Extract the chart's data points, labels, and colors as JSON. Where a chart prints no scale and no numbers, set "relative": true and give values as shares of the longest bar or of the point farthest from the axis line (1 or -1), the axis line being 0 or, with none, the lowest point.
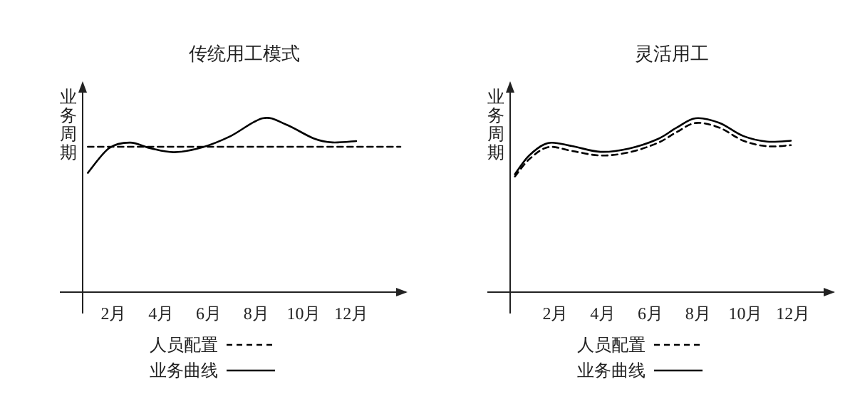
{
  "chart_data": [
    {
      "type": "line",
      "title": "传统用工模式",
      "ylabel": "业务周期",
      "relative": true,
      "tick_labels": "x",
      "legend": "bottom",
      "xlim": [
        0.7,
        14.3
      ],
      "xticks": [
        {
          "value": 2,
          "label": "2月"
        },
        {
          "value": 4,
          "label": "4月"
        },
        {
          "value": 6,
          "label": "6月"
        },
        {
          "value": 8,
          "label": "8月"
        },
        {
          "value": 10,
          "label": "10月"
        },
        {
          "value": 12,
          "label": "12月"
        }
      ],
      "series": [
        {
          "name": "人员配置",
          "color": "#000000",
          "line_style": "dashed",
          "x": [
            0.92,
            14.06
          ],
          "values": [
            0.836,
            0.836
          ]
        },
        {
          "name": "业务曲线",
          "color": "#000000",
          "line_style": "solid",
          "x": [
            0.92,
            1.8,
            2.69,
            3.57,
            4.55,
            5.73,
            6.9,
            8.27,
            9.25,
            10.43,
            11.2,
            12.2
          ],
          "values": [
            0.686,
            0.827,
            0.86,
            0.827,
            0.805,
            0.833,
            0.896,
            1.0,
            0.964,
            0.883,
            0.861,
            0.869
          ]
        }
      ]
    },
    {
      "type": "line",
      "title": "灵活用工",
      "ylabel": "业务周期",
      "relative": true,
      "tick_labels": "x",
      "legend": "bottom",
      "xlim": [
        0.1,
        13.7
      ],
      "xticks": [
        {
          "value": 2,
          "label": "2月"
        },
        {
          "value": 4,
          "label": "4月"
        },
        {
          "value": 6,
          "label": "6月"
        },
        {
          "value": 8,
          "label": "8月"
        },
        {
          "value": 10,
          "label": "10月"
        },
        {
          "value": 12,
          "label": "12月"
        }
      ],
      "series": [
        {
          "name": "人员配置",
          "color": "#000000",
          "line_style": "dashed",
          "x": [
            0.3,
            0.9,
            1.7,
            2.7,
            3.9,
            5.1,
            6.3,
            7.1,
            7.9,
            8.9,
            9.9,
            10.9,
            11.9
          ],
          "values": [
            0.665,
            0.764,
            0.834,
            0.812,
            0.786,
            0.804,
            0.858,
            0.92,
            0.973,
            0.946,
            0.871,
            0.839,
            0.845
          ]
        },
        {
          "name": "业务曲线",
          "color": "#000000",
          "line_style": "solid",
          "x": [
            0.3,
            0.9,
            1.7,
            2.7,
            3.9,
            5.1,
            6.3,
            7.1,
            7.9,
            8.9,
            9.9,
            10.9,
            11.9
          ],
          "values": [
            0.678,
            0.786,
            0.858,
            0.84,
            0.807,
            0.826,
            0.88,
            0.946,
            1.0,
            0.973,
            0.898,
            0.866,
            0.871
          ]
        }
      ]
    }
  ]
}
